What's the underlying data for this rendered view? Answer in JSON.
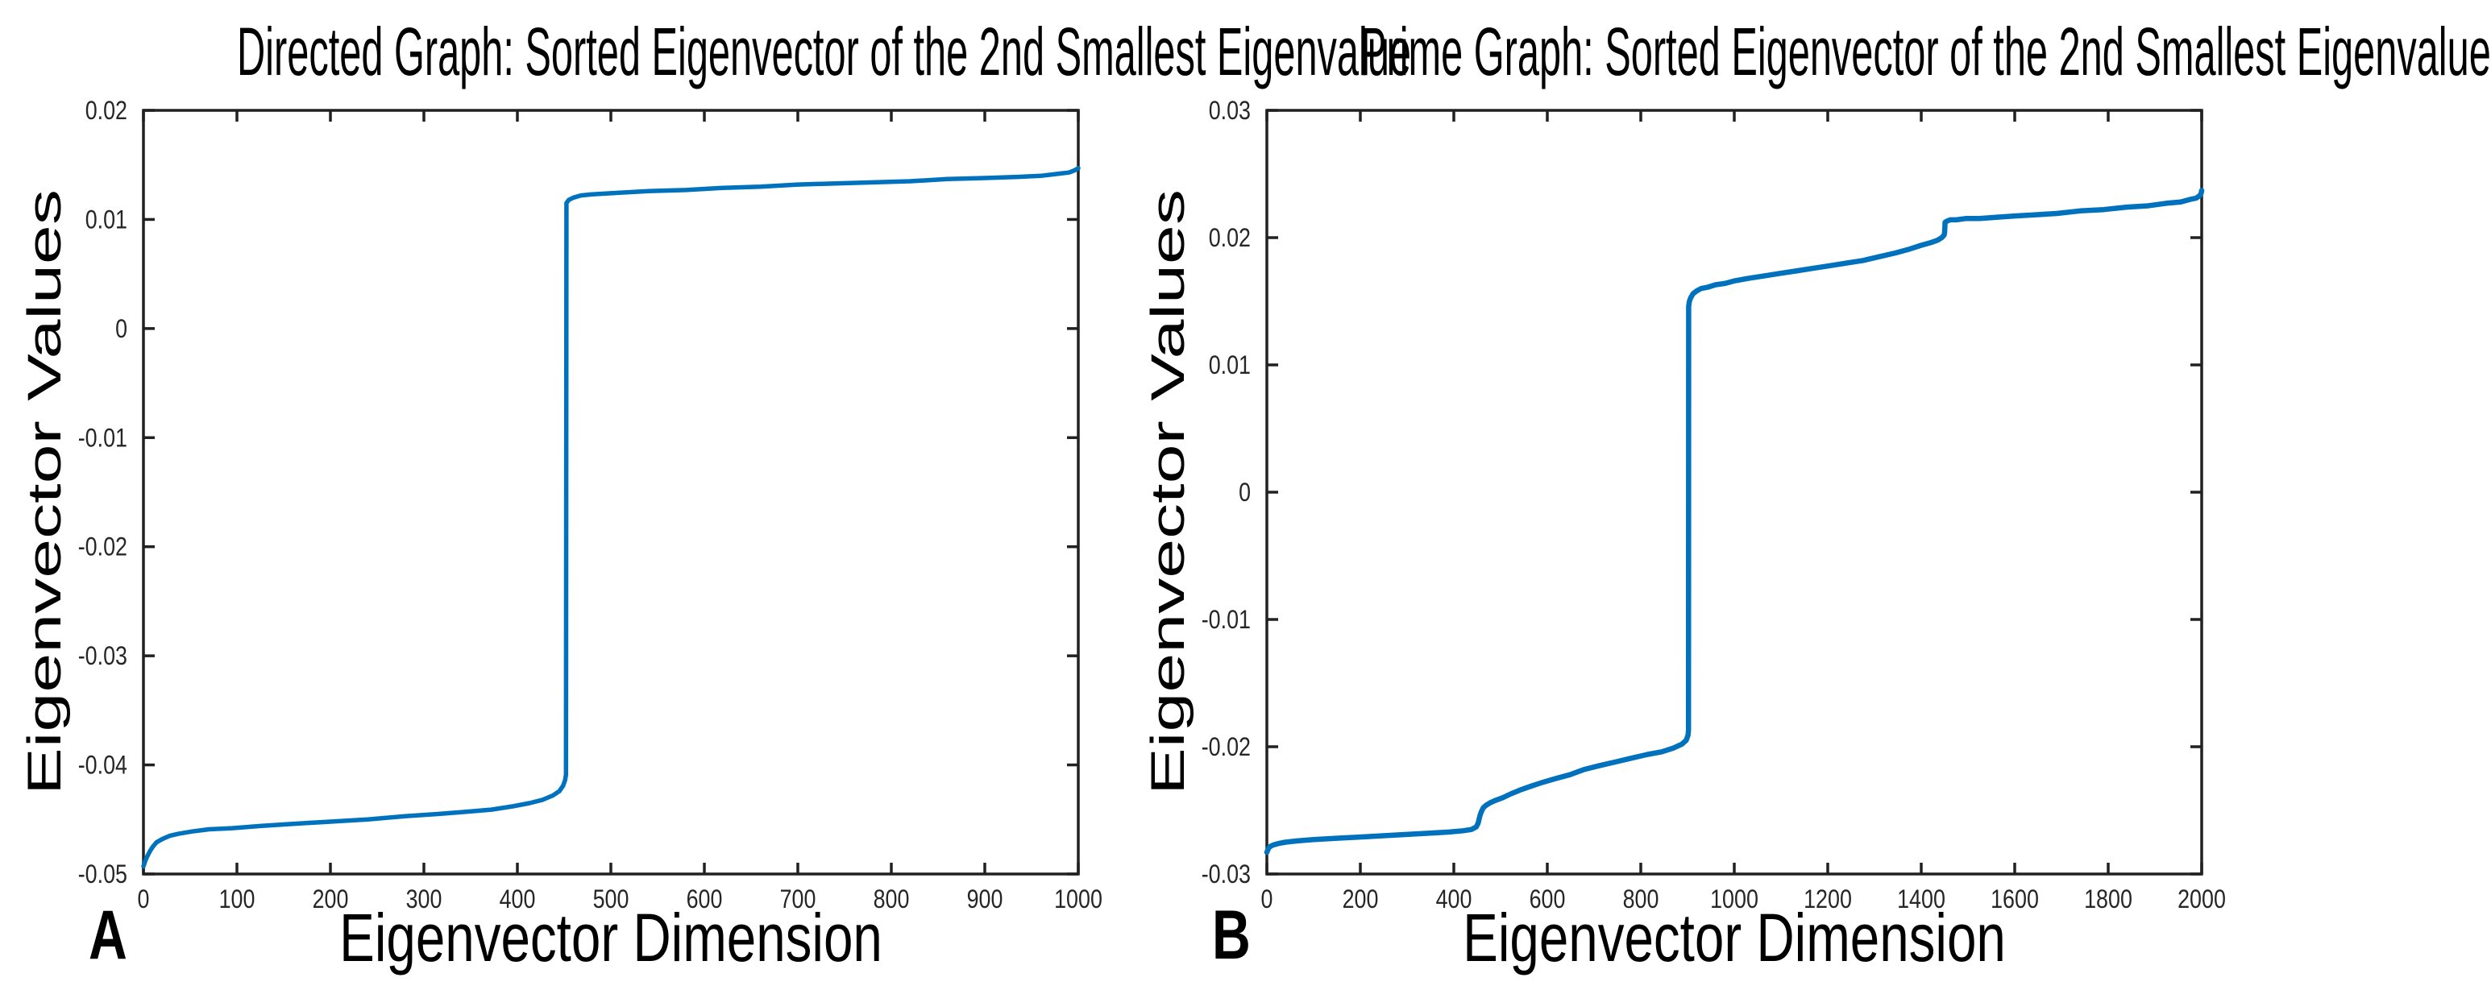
{
  "page": {
    "background": "#ffffff"
  },
  "colors": {
    "line": "#0072BD",
    "axis": "#212121",
    "tick_text": "#262626",
    "label_text": "#000000"
  },
  "panels": [
    {
      "corner_label": "A"
    },
    {
      "corner_label": "B"
    }
  ],
  "chart_data": [
    {
      "type": "line",
      "title": "Directed Graph: Sorted Eigenvector of the 2nd Smallest Eigenvalue",
      "xlabel": "Eigenvector Dimension",
      "ylabel": "Eigenvector Values",
      "xlim": [
        0,
        1000
      ],
      "ylim": [
        -0.05,
        0.02
      ],
      "xticks": [
        0,
        100,
        200,
        300,
        400,
        500,
        600,
        700,
        800,
        900,
        1000
      ],
      "xtick_labels": [
        "0",
        "100",
        "200",
        "300",
        "400",
        "500",
        "600",
        "700",
        "800",
        "900",
        "1000"
      ],
      "yticks": [
        0.02,
        0.01,
        0,
        -0.01,
        -0.02,
        -0.03,
        -0.04,
        -0.05
      ],
      "ytick_labels": [
        "0.02",
        "0.01",
        "0",
        "-0.01",
        "-0.02",
        "-0.03",
        "-0.04",
        "-0.05"
      ],
      "grid": false,
      "legend": null,
      "series": [
        {
          "color": "#0072BD",
          "stroke_width": 5.5,
          "points": [
            [
              0,
              -0.0493
            ],
            [
              2,
              -0.0488
            ],
            [
              4,
              -0.0484
            ],
            [
              7,
              -0.0479
            ],
            [
              10,
              -0.0475
            ],
            [
              14,
              -0.0471
            ],
            [
              20,
              -0.0468
            ],
            [
              28,
              -0.0465
            ],
            [
              38,
              -0.0463
            ],
            [
              52,
              -0.0461
            ],
            [
              70,
              -0.0459
            ],
            [
              95,
              -0.0458
            ],
            [
              125,
              -0.0456
            ],
            [
              160,
              -0.0454
            ],
            [
              200,
              -0.0452
            ],
            [
              240,
              -0.045
            ],
            [
              280,
              -0.0447
            ],
            [
              315,
              -0.0445
            ],
            [
              345,
              -0.0443
            ],
            [
              372,
              -0.0441
            ],
            [
              395,
              -0.0438
            ],
            [
              413,
              -0.0435
            ],
            [
              427,
              -0.0432
            ],
            [
              438,
              -0.0428
            ],
            [
              445,
              -0.0424
            ],
            [
              449,
              -0.0419
            ],
            [
              451,
              -0.0414
            ],
            [
              452,
              -0.0409
            ],
            [
              452.5,
              0.0115
            ],
            [
              455,
              0.0118
            ],
            [
              460,
              0.012
            ],
            [
              468,
              0.0122
            ],
            [
              480,
              0.0123
            ],
            [
              500,
              0.0124
            ],
            [
              540,
              0.0126
            ],
            [
              580,
              0.0127
            ],
            [
              620,
              0.0129
            ],
            [
              660,
              0.013
            ],
            [
              700,
              0.0132
            ],
            [
              740,
              0.0133
            ],
            [
              780,
              0.0134
            ],
            [
              820,
              0.0135
            ],
            [
              860,
              0.0137
            ],
            [
              900,
              0.0138
            ],
            [
              935,
              0.0139
            ],
            [
              960,
              0.014
            ],
            [
              980,
              0.0142
            ],
            [
              990,
              0.0143
            ],
            [
              996,
              0.0145
            ],
            [
              1000,
              0.0147
            ]
          ]
        }
      ]
    },
    {
      "type": "line",
      "title": "Prime Graph: Sorted Eigenvector of the 2nd Smallest Eigenvalue",
      "xlabel": "Eigenvector Dimension",
      "ylabel": "Eigenvector Values",
      "xlim": [
        0,
        2000
      ],
      "ylim": [
        -0.03,
        0.03
      ],
      "xticks": [
        0,
        200,
        400,
        600,
        800,
        1000,
        1200,
        1400,
        1600,
        1800,
        2000
      ],
      "xtick_labels": [
        "0",
        "200",
        "400",
        "600",
        "800",
        "1000",
        "1200",
        "1400",
        "1600",
        "1800",
        "2000"
      ],
      "yticks": [
        0.03,
        0.02,
        0.01,
        0,
        -0.01,
        -0.02,
        -0.03
      ],
      "ytick_labels": [
        "0.03",
        "0.02",
        "0.01",
        "0",
        "-0.01",
        "-0.02",
        "-0.03"
      ],
      "grid": false,
      "legend": null,
      "series": [
        {
          "color": "#0072BD",
          "stroke_width": 6.5,
          "points": [
            [
              0,
              -0.0283
            ],
            [
              2,
              -0.0281
            ],
            [
              5,
              -0.0279
            ],
            [
              9,
              -0.0278
            ],
            [
              15,
              -0.0277
            ],
            [
              25,
              -0.0276
            ],
            [
              40,
              -0.0275
            ],
            [
              65,
              -0.0274
            ],
            [
              100,
              -0.0273
            ],
            [
              145,
              -0.0272
            ],
            [
              195,
              -0.0271
            ],
            [
              245,
              -0.027
            ],
            [
              295,
              -0.0269
            ],
            [
              345,
              -0.0268
            ],
            [
              390,
              -0.0267
            ],
            [
              420,
              -0.0266
            ],
            [
              438,
              -0.0265
            ],
            [
              448,
              -0.0263
            ],
            [
              452,
              -0.026
            ],
            [
              454,
              -0.0257
            ],
            [
              456,
              -0.0254
            ],
            [
              459,
              -0.0251
            ],
            [
              463,
              -0.0248
            ],
            [
              469,
              -0.0246
            ],
            [
              478,
              -0.0244
            ],
            [
              490,
              -0.0242
            ],
            [
              505,
              -0.024
            ],
            [
              522,
              -0.0237
            ],
            [
              542,
              -0.0234
            ],
            [
              565,
              -0.0231
            ],
            [
              590,
              -0.0228
            ],
            [
              618,
              -0.0225
            ],
            [
              648,
              -0.0222
            ],
            [
              678,
              -0.0218
            ],
            [
              710,
              -0.0215
            ],
            [
              745,
              -0.0212
            ],
            [
              780,
              -0.0209
            ],
            [
              815,
              -0.0206
            ],
            [
              845,
              -0.0204
            ],
            [
              870,
              -0.0201
            ],
            [
              888,
              -0.0198
            ],
            [
              897,
              -0.0195
            ],
            [
              901,
              -0.0191
            ],
            [
              902,
              -0.0187
            ],
            [
              902.5,
              0.0146
            ],
            [
              904,
              0.015
            ],
            [
              907,
              0.0153
            ],
            [
              912,
              0.0156
            ],
            [
              919,
              0.0158
            ],
            [
              929,
              0.016
            ],
            [
              943,
              0.0161
            ],
            [
              960,
              0.0163
            ],
            [
              980,
              0.0164
            ],
            [
              1000,
              0.0166
            ],
            [
              1030,
              0.0168
            ],
            [
              1065,
              0.017
            ],
            [
              1100,
              0.0172
            ],
            [
              1135,
              0.0174
            ],
            [
              1170,
              0.0176
            ],
            [
              1205,
              0.0178
            ],
            [
              1240,
              0.018
            ],
            [
              1275,
              0.0182
            ],
            [
              1310,
              0.0185
            ],
            [
              1345,
              0.0188
            ],
            [
              1375,
              0.0191
            ],
            [
              1400,
              0.0194
            ],
            [
              1420,
              0.0196
            ],
            [
              1435,
              0.0198
            ],
            [
              1444,
              0.02
            ],
            [
              1449,
              0.0202
            ],
            [
              1450,
              0.0204
            ],
            [
              1451,
              0.0212
            ],
            [
              1455,
              0.0213
            ],
            [
              1462,
              0.0214
            ],
            [
              1475,
              0.0214
            ],
            [
              1495,
              0.0215
            ],
            [
              1525,
              0.0215
            ],
            [
              1560,
              0.0216
            ],
            [
              1600,
              0.0217
            ],
            [
              1645,
              0.0218
            ],
            [
              1690,
              0.0219
            ],
            [
              1740,
              0.0221
            ],
            [
              1790,
              0.0222
            ],
            [
              1840,
              0.0224
            ],
            [
              1885,
              0.0225
            ],
            [
              1925,
              0.0227
            ],
            [
              1955,
              0.0228
            ],
            [
              1975,
              0.023
            ],
            [
              1988,
              0.0231
            ],
            [
              1996,
              0.0233
            ],
            [
              1999,
              0.0235
            ],
            [
              2000,
              0.0237
            ]
          ]
        }
      ]
    }
  ]
}
